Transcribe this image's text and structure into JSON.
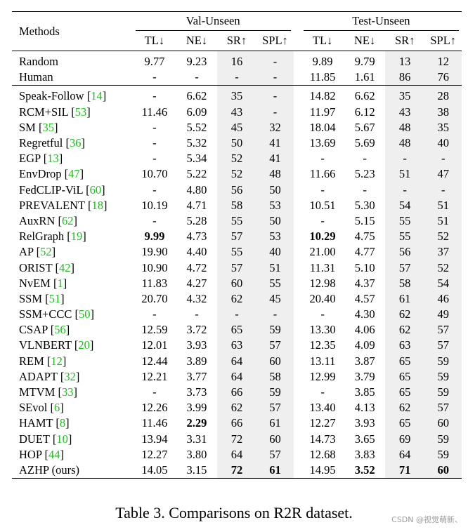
{
  "table": {
    "header": {
      "methods": "Methods",
      "val_group": "Val-Unseen",
      "test_group": "Test-Unseen",
      "cols": [
        "TL↓",
        "NE↓",
        "SR↑",
        "SPL↑"
      ]
    },
    "rows": [
      {
        "name": "Random",
        "cite": "",
        "v": [
          "9.77",
          "9.23",
          "16",
          "-",
          "9.89",
          "9.79",
          "13",
          "12"
        ],
        "bold": [],
        "group": 1
      },
      {
        "name": "Human",
        "cite": "",
        "v": [
          "-",
          "-",
          "-",
          "-",
          "11.85",
          "1.61",
          "86",
          "76"
        ],
        "bold": [],
        "group": 1
      },
      {
        "name": "Speak-Follow",
        "cite": "14",
        "v": [
          "-",
          "6.62",
          "35",
          "-",
          "14.82",
          "6.62",
          "35",
          "28"
        ],
        "bold": [],
        "group": 2
      },
      {
        "name": "RCM+SIL",
        "cite": "53",
        "v": [
          "11.46",
          "6.09",
          "43",
          "-",
          "11.97",
          "6.12",
          "43",
          "38"
        ],
        "bold": [],
        "group": 2
      },
      {
        "name": "SM",
        "cite": "35",
        "v": [
          "-",
          "5.52",
          "45",
          "32",
          "18.04",
          "5.67",
          "48",
          "35"
        ],
        "bold": [],
        "group": 2
      },
      {
        "name": "Regretful",
        "cite": "36",
        "v": [
          "-",
          "5.32",
          "50",
          "41",
          "13.69",
          "5.69",
          "48",
          "40"
        ],
        "bold": [],
        "group": 2
      },
      {
        "name": "EGP",
        "cite": "13",
        "v": [
          "-",
          "5.34",
          "52",
          "41",
          "-",
          "-",
          "-",
          "-"
        ],
        "bold": [],
        "group": 2
      },
      {
        "name": "EnvDrop",
        "cite": "47",
        "v": [
          "10.70",
          "5.22",
          "52",
          "48",
          "11.66",
          "5.23",
          "51",
          "47"
        ],
        "bold": [],
        "group": 2
      },
      {
        "name": "FedCLIP-ViL",
        "cite": "60",
        "v": [
          "-",
          "4.80",
          "56",
          "50",
          "-",
          "-",
          "-",
          "-"
        ],
        "bold": [],
        "group": 2
      },
      {
        "name": "PREVALENT",
        "cite": "18",
        "v": [
          "10.19",
          "4.71",
          "58",
          "53",
          "10.51",
          "5.30",
          "54",
          "51"
        ],
        "bold": [],
        "group": 2
      },
      {
        "name": "AuxRN",
        "cite": "62",
        "v": [
          "-",
          "5.28",
          "55",
          "50",
          "-",
          "5.15",
          "55",
          "51"
        ],
        "bold": [],
        "group": 2
      },
      {
        "name": "RelGraph",
        "cite": "19",
        "v": [
          "9.99",
          "4.73",
          "57",
          "53",
          "10.29",
          "4.75",
          "55",
          "52"
        ],
        "bold": [
          0,
          4
        ],
        "group": 2
      },
      {
        "name": "AP",
        "cite": "52",
        "v": [
          "19.90",
          "4.40",
          "55",
          "40",
          "21.00",
          "4.77",
          "56",
          "37"
        ],
        "bold": [],
        "group": 2
      },
      {
        "name": "ORIST",
        "cite": "42",
        "v": [
          "10.90",
          "4.72",
          "57",
          "51",
          "11.31",
          "5.10",
          "57",
          "52"
        ],
        "bold": [],
        "group": 2
      },
      {
        "name": "NvEM",
        "cite": "1",
        "v": [
          "11.83",
          "4.27",
          "60",
          "55",
          "12.98",
          "4.37",
          "58",
          "54"
        ],
        "bold": [],
        "group": 2
      },
      {
        "name": "SSM",
        "cite": "51",
        "v": [
          "20.70",
          "4.32",
          "62",
          "45",
          "20.40",
          "4.57",
          "61",
          "46"
        ],
        "bold": [],
        "group": 2
      },
      {
        "name": "SSM+CCC",
        "cite": "50",
        "v": [
          "-",
          "-",
          "-",
          "-",
          "-",
          "4.30",
          "62",
          "49"
        ],
        "bold": [],
        "group": 2
      },
      {
        "name": "CSAP",
        "cite": "56",
        "v": [
          "12.59",
          "3.72",
          "65",
          "59",
          "13.30",
          "4.06",
          "62",
          "57"
        ],
        "bold": [],
        "group": 2
      },
      {
        "name": "VLNBERT",
        "cite": "20",
        "v": [
          "12.01",
          "3.93",
          "63",
          "57",
          "12.35",
          "4.09",
          "63",
          "57"
        ],
        "bold": [],
        "group": 2
      },
      {
        "name": "REM",
        "cite": "12",
        "v": [
          "12.44",
          "3.89",
          "64",
          "60",
          "13.11",
          "3.87",
          "65",
          "59"
        ],
        "bold": [],
        "group": 2
      },
      {
        "name": "ADAPT",
        "cite": "32",
        "v": [
          "12.21",
          "3.77",
          "64",
          "58",
          "12.99",
          "3.79",
          "65",
          "59"
        ],
        "bold": [],
        "group": 2
      },
      {
        "name": "MTVM",
        "cite": "33",
        "v": [
          "-",
          "3.73",
          "66",
          "59",
          "-",
          "3.85",
          "65",
          "59"
        ],
        "bold": [],
        "group": 2
      },
      {
        "name": "SEvol",
        "cite": "6",
        "v": [
          "12.26",
          "3.99",
          "62",
          "57",
          "13.40",
          "4.13",
          "62",
          "57"
        ],
        "bold": [],
        "group": 2
      },
      {
        "name": "HAMT",
        "cite": "8",
        "v": [
          "11.46",
          "2.29",
          "66",
          "61",
          "12.27",
          "3.93",
          "65",
          "60"
        ],
        "bold": [
          1
        ],
        "group": 2
      },
      {
        "name": "DUET",
        "cite": "10",
        "v": [
          "13.94",
          "3.31",
          "72",
          "60",
          "14.73",
          "3.65",
          "69",
          "59"
        ],
        "bold": [],
        "group": 2
      },
      {
        "name": "HOP",
        "cite": "44",
        "v": [
          "12.27",
          "3.80",
          "64",
          "57",
          "12.68",
          "3.83",
          "64",
          "59"
        ],
        "bold": [],
        "group": 2
      },
      {
        "name": "AZHP (ours)",
        "cite": "",
        "v": [
          "14.05",
          "3.15",
          "72",
          "61",
          "14.95",
          "3.52",
          "71",
          "60"
        ],
        "bold": [
          2,
          3,
          5,
          6,
          7
        ],
        "group": 2
      }
    ]
  },
  "caption": "Table 3. Comparisons on R2R dataset.",
  "watermark": "CSDN @视觉萌新、"
}
